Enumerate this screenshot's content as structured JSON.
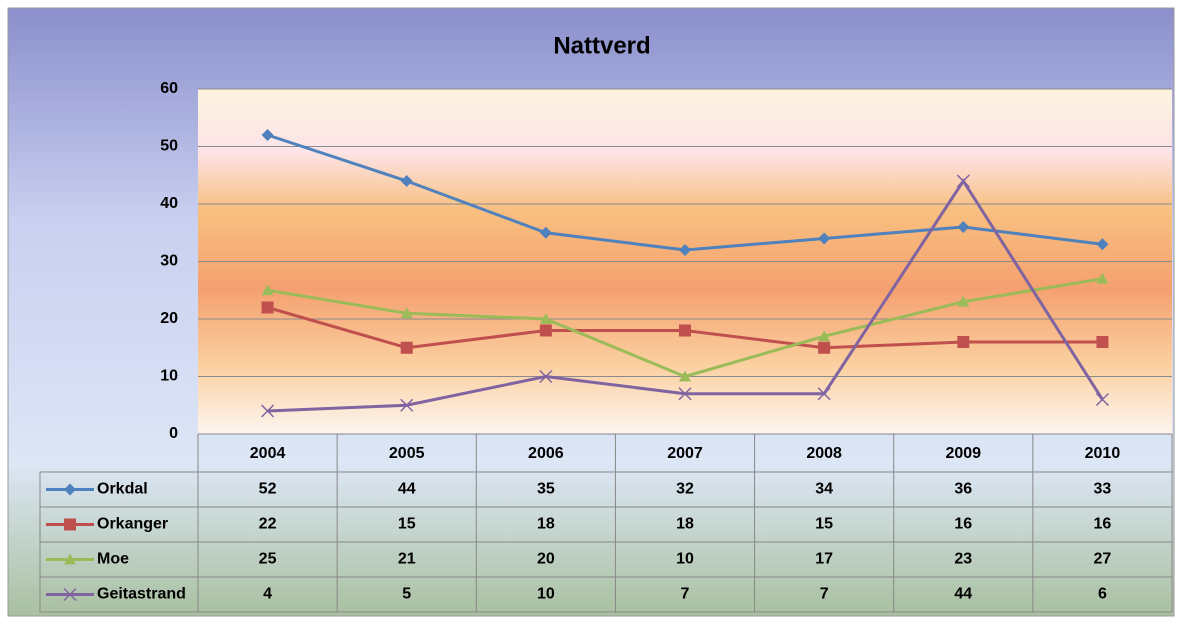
{
  "chart_data": {
    "type": "line",
    "title": "Nattverd",
    "categories": [
      "2004",
      "2005",
      "2006",
      "2007",
      "2008",
      "2009",
      "2010"
    ],
    "series": [
      {
        "name": "Orkdal",
        "color": "#4f81bd",
        "marker": "diamond",
        "values": [
          52,
          44,
          35,
          32,
          34,
          36,
          33
        ]
      },
      {
        "name": "Orkanger",
        "color": "#c0504d",
        "marker": "square",
        "values": [
          22,
          15,
          18,
          18,
          15,
          16,
          16
        ]
      },
      {
        "name": "Moe",
        "color": "#9bbb59",
        "marker": "triangle",
        "values": [
          25,
          21,
          20,
          10,
          17,
          23,
          27
        ]
      },
      {
        "name": "Geitastrand",
        "color": "#8064a2",
        "marker": "x",
        "values": [
          4,
          5,
          10,
          7,
          7,
          44,
          6
        ]
      }
    ],
    "ylim": [
      0,
      60
    ],
    "yticks": [
      0,
      10,
      20,
      30,
      40,
      50,
      60
    ],
    "grid": true,
    "data_table": true
  }
}
